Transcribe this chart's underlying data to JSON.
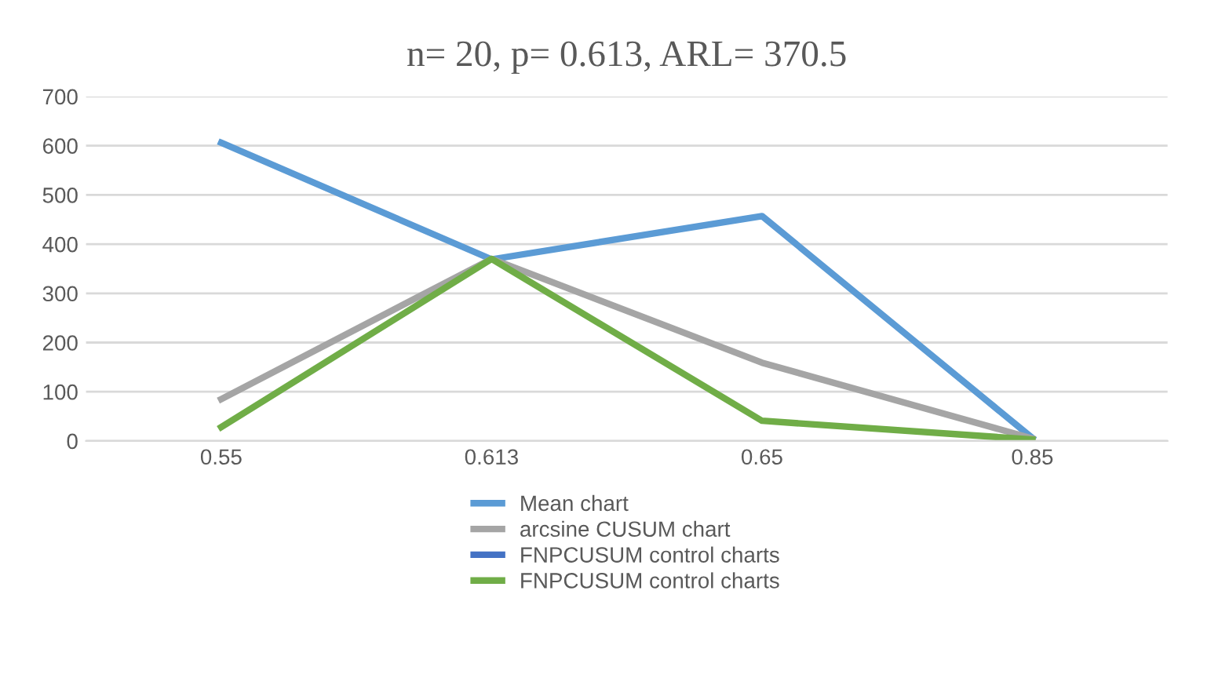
{
  "chart_data": {
    "type": "line",
    "title": "n= 20, p= 0.613, ARL= 370.5",
    "categories": [
      "0.55",
      "0.613",
      "0.65",
      "0.85"
    ],
    "series": [
      {
        "name": "Mean chart",
        "color": "#5b9bd5",
        "values": [
          606,
          369,
          457,
          6
        ]
      },
      {
        "name": "arcsine CUSUM chart",
        "color": "#a5a5a5",
        "values": [
          85,
          370,
          159,
          5
        ]
      },
      {
        "name": "FNPCUSUM control charts",
        "color": "#4472c4",
        "values": [
          null,
          null,
          null,
          null
        ]
      },
      {
        "name": "FNPCUSUM control charts",
        "color": "#70ad47",
        "values": [
          28,
          370,
          41,
          3
        ]
      }
    ],
    "ylim": [
      0,
      700
    ],
    "yticks": [
      0,
      100,
      200,
      300,
      400,
      500,
      600,
      700
    ],
    "grid": "y",
    "legend": "bottom",
    "marker": "none",
    "line_style": "solid"
  }
}
